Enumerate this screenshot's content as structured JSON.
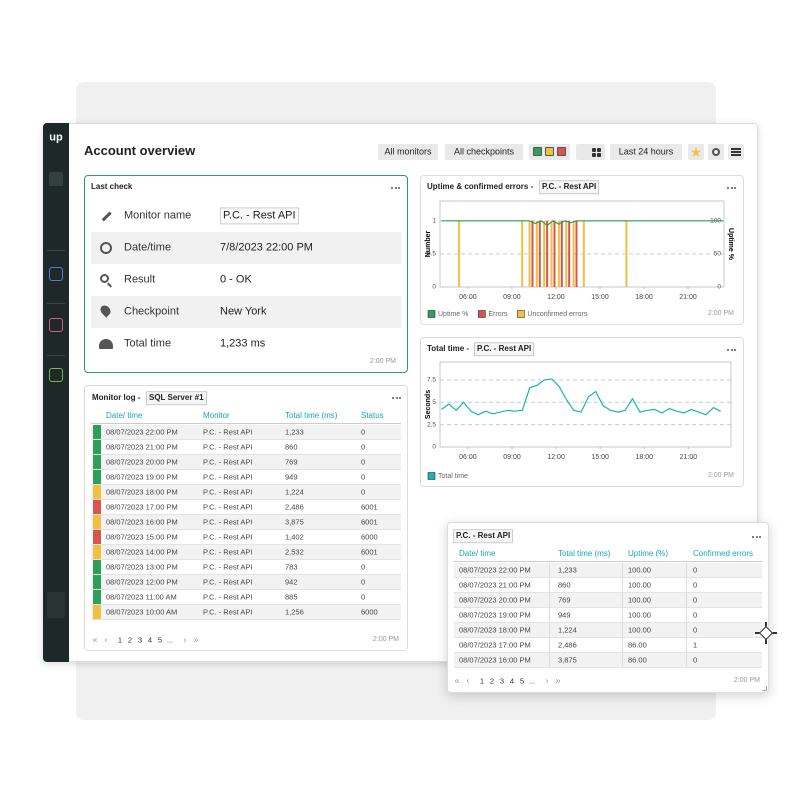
{
  "app": {
    "logo": "up"
  },
  "header": {
    "title": "Account overview",
    "buttons": [
      "All monitors",
      "All checkpoints",
      "Last 24 hours"
    ],
    "status_colors": [
      "#2e9e5b",
      "#f0c040",
      "#d9534f"
    ]
  },
  "last_check": {
    "title": "Last check",
    "rows": [
      [
        "Monitor name",
        "P.C. - Rest API"
      ],
      [
        "Date/time",
        "7/8/2023 22:00 PM"
      ],
      [
        "Result",
        "0 - OK"
      ],
      [
        "Checkpoint",
        "New York"
      ],
      [
        "Total time",
        "1,233 ms"
      ]
    ],
    "footer": "2:00 PM"
  },
  "monitor_log": {
    "title": "Monitor log - ",
    "monitor": "SQL Server #1",
    "columns": [
      "Date/ time",
      "Monitor",
      "Total time (ms)",
      "Status"
    ],
    "rows": [
      [
        "08/07/2023 22:00 PM",
        "P.C. - Rest API",
        "1,233",
        "0"
      ],
      [
        "08/07/2023 21:00 PM",
        "P.C. - Rest API",
        "860",
        "0"
      ],
      [
        "08/07/2023 20:00 PM",
        "P.C. - Rest API",
        "769",
        "0"
      ],
      [
        "08/07/2023 19:00 PM",
        "P.C. - Rest API",
        "949",
        "0"
      ],
      [
        "08/07/2023 18:00 PM",
        "P.C. - Rest API",
        "1,224",
        "0"
      ],
      [
        "08/07/2023 17:00 PM",
        "P.C. - Rest API",
        "2,486",
        "6001"
      ],
      [
        "08/07/2023 16:00 PM",
        "P.C. - Rest API",
        "3,875",
        "6001"
      ],
      [
        "08/07/2023 15:00 PM",
        "P.C. - Rest API",
        "1,402",
        "6000"
      ],
      [
        "08/07/2023 14:00 PM",
        "P.C. - Rest API",
        "2,532",
        "6001"
      ],
      [
        "08/07/2023 13:00 PM",
        "P.C. - Rest API",
        "783",
        "0"
      ],
      [
        "08/07/2023 12:00 PM",
        "P.C. - Rest API",
        "942",
        "0"
      ],
      [
        "08/07/2023 11:00 AM",
        "P.C. - Rest API",
        "885",
        "0"
      ],
      [
        "08/07/2023 10:00 AM",
        "P.C. - Rest API",
        "1,256",
        "6000"
      ]
    ],
    "row_colors": [
      "#2e9e5b",
      "#2e9e5b",
      "#2e9e5b",
      "#2e9e5b",
      "#f0c040",
      "#d9534f",
      "#f0c040",
      "#d9534f",
      "#f0c040",
      "#2e9e5b",
      "#2e9e5b",
      "#2e9e5b",
      "#f0c040"
    ],
    "pagination": {
      "first": "«",
      "prev": "‹",
      "pages": [
        "1",
        "2",
        "3",
        "4",
        "5",
        "..."
      ],
      "next": "›",
      "last": "»"
    },
    "footer": "2:00 PM"
  },
  "uptime_chart": {
    "type": "bar-line",
    "title": "Uptime & confirmed errors - ",
    "monitor": "P.C. - Rest API",
    "ylabel": "Number",
    "y2label": "Uptime %",
    "grid": true,
    "xlim": [
      4.1,
      23.45
    ],
    "xticks": [
      {
        "value": 6,
        "label": "06:00"
      },
      {
        "value": 9,
        "label": "09:00"
      },
      {
        "value": 12,
        "label": "12:00"
      },
      {
        "value": 15,
        "label": "15:00"
      },
      {
        "value": 18,
        "label": "18:00"
      },
      {
        "value": 21,
        "label": "21:00"
      }
    ],
    "ylim": [
      0,
      1.3
    ],
    "yticks": [
      0,
      0.5,
      1
    ],
    "y2lim": [
      0,
      130
    ],
    "y2ticks": [
      0,
      50,
      100
    ],
    "series": [
      {
        "name": "Uptime %",
        "color": "#2e9e5b",
        "type": "line",
        "axis": "y2",
        "x": [
          4.2,
          10.2,
          10.6,
          11.0,
          11.4,
          11.8,
          12.2,
          12.6,
          13.0,
          13.4,
          23.4
        ],
        "values": [
          100,
          100,
          96,
          100,
          93,
          100,
          95,
          100,
          97,
          100,
          100
        ]
      },
      {
        "name": "Errors",
        "color": "#d9534f",
        "type": "bar",
        "x": [
          10.4,
          10.9,
          11.4,
          11.9,
          12.4,
          12.9,
          13.4
        ],
        "values": [
          1,
          1,
          1,
          1,
          1,
          1,
          1
        ]
      },
      {
        "name": "Unconfirmed errors",
        "color": "#f0c040",
        "type": "bar",
        "x": [
          5.4,
          9.7,
          10.2,
          10.7,
          11.2,
          11.7,
          12.2,
          12.7,
          13.2,
          13.9,
          16.8
        ],
        "values": [
          1,
          1,
          1,
          1,
          1,
          1,
          1,
          1,
          1,
          1,
          1
        ]
      }
    ],
    "footer": "2:00 PM"
  },
  "total_time_chart": {
    "type": "line",
    "title": "Total time - ",
    "monitor": "P.C. - Rest API",
    "ylabel": "Seconds",
    "grid": true,
    "xlim": [
      4.1,
      23.9
    ],
    "xticks": [
      {
        "value": 6,
        "label": "06:00"
      },
      {
        "value": 9,
        "label": "09:00"
      },
      {
        "value": 12,
        "label": "12:00"
      },
      {
        "value": 15,
        "label": "15:00"
      },
      {
        "value": 18,
        "label": "18:00"
      },
      {
        "value": 21,
        "label": "21:00"
      }
    ],
    "ylim": [
      0,
      9.5
    ],
    "yticks": [
      0,
      2.5,
      5,
      7.5
    ],
    "series": [
      {
        "name": "Total time",
        "color": "#19b5b5",
        "x": [
          4.2,
          4.7,
          5.2,
          5.7,
          6.2,
          6.7,
          7.2,
          7.7,
          8.2,
          8.7,
          9.2,
          9.7,
          10.2,
          10.7,
          11.2,
          11.7,
          12.2,
          12.7,
          13.2,
          13.7,
          14.2,
          14.7,
          15.2,
          15.7,
          16.2,
          16.7,
          17.2,
          17.7,
          18.2,
          18.7,
          19.2,
          19.7,
          20.2,
          20.7,
          21.2,
          21.7,
          22.2,
          22.7,
          23.2
        ],
        "values": [
          4.2,
          4.8,
          4.1,
          5.0,
          4.0,
          3.6,
          4.0,
          3.7,
          3.9,
          4.1,
          4.0,
          4.1,
          6.6,
          6.9,
          7.5,
          7.6,
          6.8,
          5.3,
          4.1,
          3.9,
          5.6,
          6.2,
          4.6,
          4.1,
          3.9,
          4.1,
          5.4,
          3.9,
          4.1,
          4.2,
          3.8,
          4.3,
          4.0,
          3.8,
          4.2,
          3.9,
          3.6,
          4.4,
          4.0
        ]
      }
    ],
    "footer": "2:00 PM"
  },
  "popup": {
    "title": "P.C. - Rest API",
    "columns": [
      "Date/ time",
      "Total time (ms)",
      "Uptime (%)",
      "Confirmed errors"
    ],
    "rows": [
      [
        "08/07/2023 22:00 PM",
        "1,233",
        "100.00",
        "0"
      ],
      [
        "08/07/2023 21:00 PM",
        "860",
        "100.00",
        "0"
      ],
      [
        "08/07/2023 20:00 PM",
        "769",
        "100.00",
        "0"
      ],
      [
        "08/07/2023 19:00 PM",
        "949",
        "100.00",
        "0"
      ],
      [
        "08/07/2023 18:00 PM",
        "1,224",
        "100.00",
        "0"
      ],
      [
        "08/07/2023 17:00 PM",
        "2,486",
        "86.00",
        "1"
      ],
      [
        "08/07/2023 16:00 PM",
        "3,875",
        "86.00",
        "0"
      ]
    ],
    "pagination": {
      "first": "«",
      "prev": "‹",
      "pages": [
        "1",
        "2",
        "3",
        "4",
        "5",
        "..."
      ],
      "next": "›",
      "last": "»"
    },
    "footer": "2:00 PM"
  }
}
